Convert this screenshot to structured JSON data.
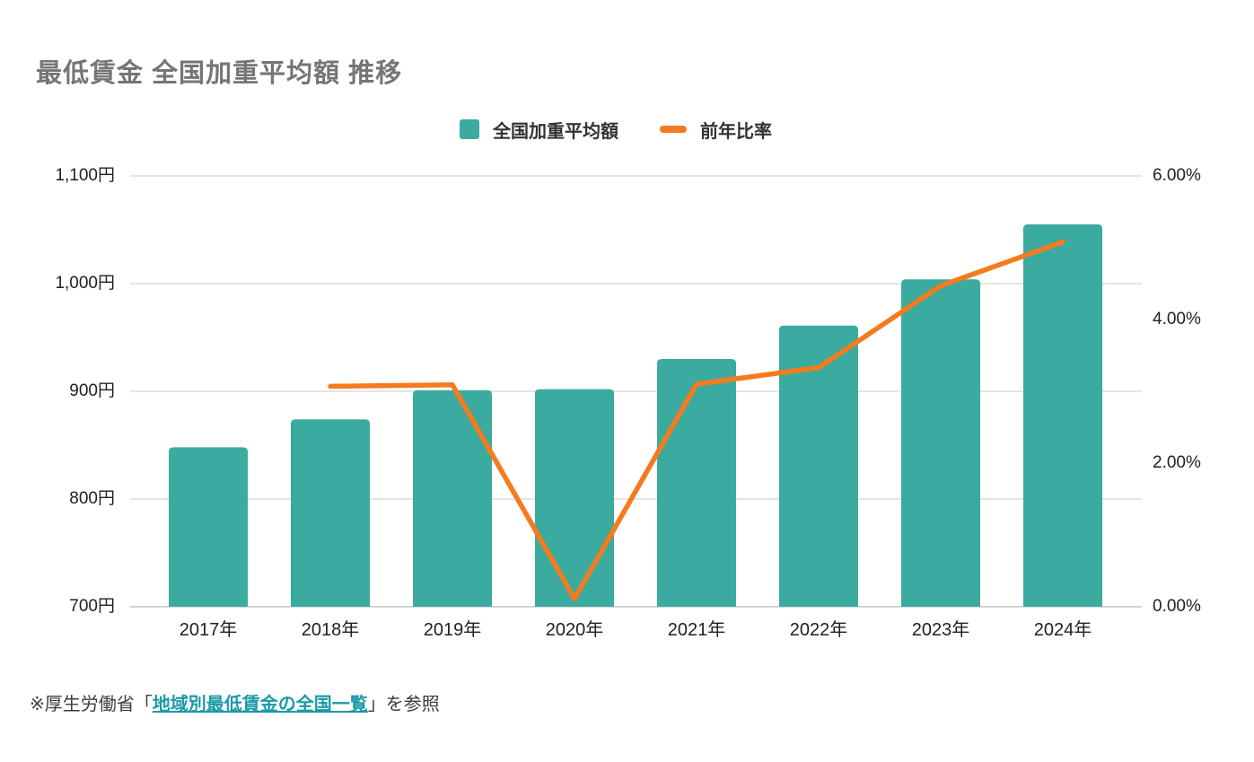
{
  "title": "最低賃金 全国加重平均額 推移",
  "legend": {
    "items": [
      {
        "label": "全国加重平均額",
        "marker": "square",
        "color": "#3aab9e"
      },
      {
        "label": "前年比率",
        "marker": "dash",
        "color": "#f57b1e"
      }
    ]
  },
  "footer": {
    "prefix": "※厚生労働省「",
    "link_text": "地域別最低賃金の全国一覧",
    "suffix": "」を参照",
    "link_color": "#1b99a9"
  },
  "colors": {
    "bar": "#3aab9e",
    "line": "#f57b1e",
    "gridline": "#e4e4e4",
    "baseline": "#d2d2d2",
    "title_gray": "#757575"
  },
  "chart_data": {
    "type": "bar",
    "subtype": "combo-bar-line-dual-axis",
    "title": "最低賃金 全国加重平均額 推移",
    "categories": [
      "2017年",
      "2018年",
      "2019年",
      "2020年",
      "2021年",
      "2022年",
      "2023年",
      "2024年"
    ],
    "series": [
      {
        "name": "全国加重平均額",
        "type": "bar",
        "axis": "left",
        "unit": "円",
        "color": "#3aab9e",
        "values": [
          848,
          874,
          901,
          902,
          930,
          961,
          1004,
          1055
        ]
      },
      {
        "name": "前年比率",
        "type": "line",
        "axis": "right",
        "unit": "%",
        "color": "#f57b1e",
        "values": [
          null,
          3.07,
          3.09,
          0.11,
          3.1,
          3.33,
          4.47,
          5.08
        ]
      }
    ],
    "left_axis": {
      "min": 700,
      "max": 1100,
      "tick_values": [
        1100,
        1000,
        900,
        800,
        700
      ],
      "tick_labels": [
        "1,100円",
        "1,000円",
        "900円",
        "800円",
        "700円"
      ]
    },
    "right_axis": {
      "min": 0,
      "max": 6,
      "tick_values": [
        6,
        4,
        2,
        0
      ],
      "tick_labels": [
        "6.00%",
        "4.00%",
        "2.00%",
        "0.00%"
      ]
    },
    "grid": true,
    "legend_position": "top"
  }
}
